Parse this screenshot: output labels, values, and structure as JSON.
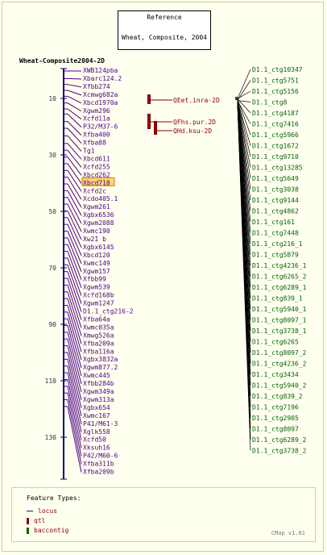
{
  "reference": {
    "title": "Reference",
    "map_name": "Wheat, Composite, 2004"
  },
  "map_title": "Wheat-Composite2004-2D",
  "scale_ticks": [
    "10",
    "30",
    "50",
    "70",
    "90",
    "110",
    "130"
  ],
  "highlighted_marker": "Xbcd718",
  "markers": [
    "XWB124pba",
    "Xbarc124.2",
    "Xfbb274",
    "Xcmwg682a",
    "Xbcd1970a",
    "Xgwm296",
    "Xcfd11a",
    "P32/M37-6",
    "Xfba400",
    "Xfba88",
    "Tg1",
    "Xbcd611",
    "Xcfd255",
    "Xbcd262",
    "Xbcd718",
    "Xcfd2c",
    "Xcdo405.1",
    "Xgwm261",
    "Xgbx6536",
    "Xgwm2088",
    "Xwmc190",
    "Xw2I b",
    "Xgbx6145",
    "Xbcd120",
    "Xwmc149",
    "Xgwm157",
    "Xfbb99",
    "Xgwm539",
    "Xcfd168b",
    "Xgwm1247",
    "D1.1_ctg216-2",
    "Xfba64a",
    "Xwmc035a",
    "Xmwg526a",
    "Xfba209a",
    "Xfba116a",
    "Xgbx3832a",
    "Xgwm877.2",
    "Xwmc445",
    "Xfbb284b",
    "Xgwm349a",
    "Xgwm313a",
    "Xgbx654",
    "Xwmc167",
    "P41/M61-3",
    "Xglk558",
    "Xcfd50",
    "Xksuh16",
    "P42/M60-6",
    "Xfba311b",
    "Xfba209b"
  ],
  "qtls": [
    "QEet.inra-2D",
    "QFhs.pur.2D",
    "QHd.ksu-2D"
  ],
  "contigs": [
    "D1.1_ctg10347",
    "D1.1_ctg5751",
    "D1.1_ctg5156",
    "D1.1_ctg8",
    "D1.1_ctg4187",
    "D1.1_ctg7416",
    "D1.1_ctg5966",
    "D1.1_ctg1672",
    "D1.1_ctg9710",
    "D1.1_ctg13285",
    "D1.1_ctg5649",
    "D1.1_ctg3038",
    "D1.1_ctg9144",
    "D1.1_ctg4862",
    "D1.1_ctg161",
    "D1.1_ctg7448",
    "D1.1_ctg216_1",
    "D1.1_ctg5879",
    "D1.1_ctg4236_1",
    "D1.1_ctg6265_2",
    "D1.1_ctg6289_1",
    "D1.1_ctg839_1",
    "D1.1_ctg5940_1",
    "D1.1_ctg8097_1",
    "D1.1_ctg3738_1",
    "D1.1_ctg6265",
    "D1.1_ctg8097_2",
    "D1.1_ctg4236_2",
    "D1.1_ctg3434",
    "D1.1_ctg5940_2",
    "D1.1_ctg839_2",
    "D1.1_ctg7196",
    "D1.1_ctg2905",
    "D1.1_ctg8097",
    "D1.1_ctg6289_2",
    "D1.1_ctg3738_2"
  ],
  "legend": {
    "title": "Feature Types:",
    "items": [
      "locus",
      "qtl",
      "baccontig"
    ]
  },
  "colors": {
    "marker": "#4b0082",
    "qtl": "#8b0000",
    "contig": "#006400",
    "axis": "#000080",
    "highlight": "#ffd27a"
  },
  "version": "CMap v1.01"
}
